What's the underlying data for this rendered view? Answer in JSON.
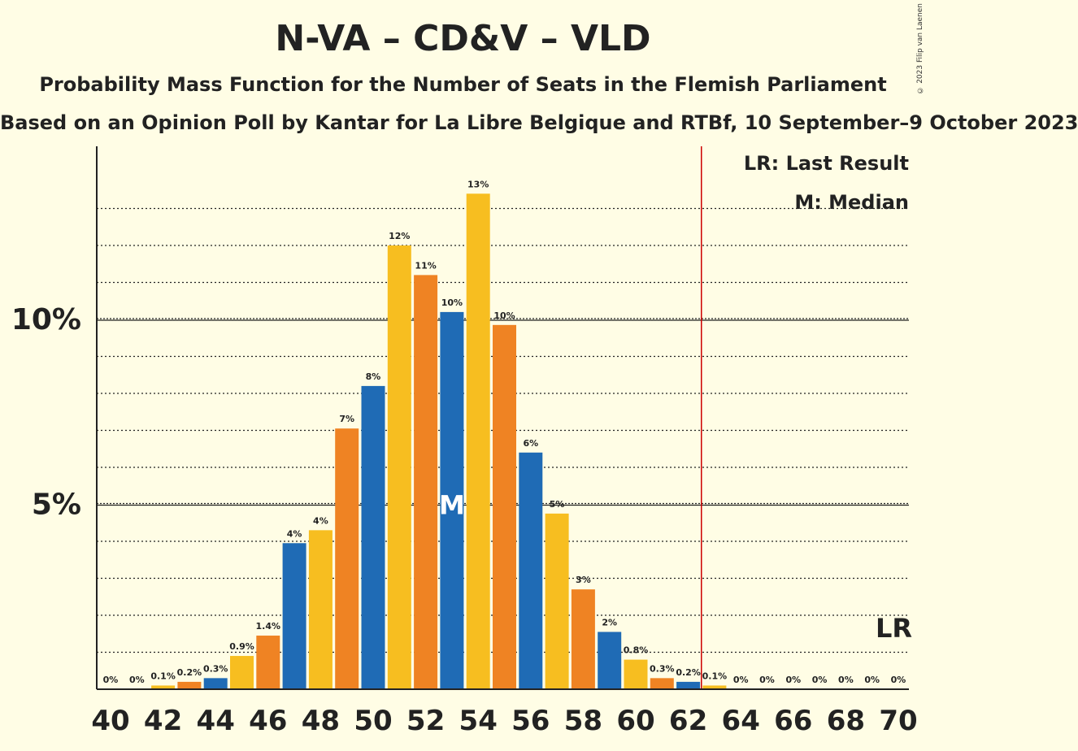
{
  "title": "N-VA – CD&V – VLD",
  "subtitle": "Probability Mass Function for the Number of Seats in the Flemish Parliament",
  "sub_subtitle": "Based on an Opinion Poll by Kantar for La Libre Belgique and RTBf, 10 September–9 October 2023",
  "copyright": "© 2023 Filip van Laenen",
  "legend": {
    "lr": "LR: Last Result",
    "median": "M: Median"
  },
  "markers": {
    "lr_label": "LR",
    "median_label": "M"
  },
  "colors": {
    "blue": "#1F6BB5",
    "yellow": "#F7BE20",
    "orange": "#EF8323",
    "lr_line": "#CC0000"
  },
  "chart_data": {
    "type": "bar",
    "xlabel": "",
    "ylabel": "",
    "ylim": [
      0,
      14.6
    ],
    "y_ticks": [
      {
        "value": 5,
        "label": "5%"
      },
      {
        "value": 10,
        "label": "10%"
      }
    ],
    "x_ticks": [
      "40",
      "42",
      "44",
      "46",
      "48",
      "50",
      "52",
      "54",
      "56",
      "58",
      "60",
      "62",
      "64",
      "66",
      "68",
      "70"
    ],
    "last_result": 63,
    "median": 53,
    "bars": [
      {
        "x": 40,
        "value": 0,
        "label": "0%",
        "color": "blue"
      },
      {
        "x": 41,
        "value": 0,
        "label": "0%",
        "color": "yellow"
      },
      {
        "x": 42,
        "value": 0.1,
        "label": "0.1%",
        "color": "yellow"
      },
      {
        "x": 43,
        "value": 0.2,
        "label": "0.2%",
        "color": "orange"
      },
      {
        "x": 44,
        "value": 0.3,
        "label": "0.3%",
        "color": "blue"
      },
      {
        "x": 45,
        "value": 0.9,
        "label": "0.9%",
        "color": "yellow"
      },
      {
        "x": 46,
        "value": 1.45,
        "label": "1.4%",
        "color": "orange"
      },
      {
        "x": 47,
        "value": 3.95,
        "label": "4%",
        "color": "blue"
      },
      {
        "x": 48,
        "value": 4.3,
        "label": "4%",
        "color": "yellow"
      },
      {
        "x": 49,
        "value": 7.05,
        "label": "7%",
        "color": "orange"
      },
      {
        "x": 50,
        "value": 8.2,
        "label": "8%",
        "color": "blue"
      },
      {
        "x": 51,
        "value": 12.0,
        "label": "12%",
        "color": "yellow"
      },
      {
        "x": 52,
        "value": 11.2,
        "label": "11%",
        "color": "orange"
      },
      {
        "x": 53,
        "value": 10.2,
        "label": "10%",
        "color": "blue"
      },
      {
        "x": 54,
        "value": 13.4,
        "label": "13%",
        "color": "yellow"
      },
      {
        "x": 55,
        "value": 9.85,
        "label": "10%",
        "color": "orange"
      },
      {
        "x": 56,
        "value": 6.4,
        "label": "6%",
        "color": "blue"
      },
      {
        "x": 57,
        "value": 4.75,
        "label": "5%",
        "color": "yellow"
      },
      {
        "x": 58,
        "value": 2.7,
        "label": "3%",
        "color": "orange"
      },
      {
        "x": 59,
        "value": 1.55,
        "label": "2%",
        "color": "blue"
      },
      {
        "x": 60,
        "value": 0.8,
        "label": "0.8%",
        "color": "yellow"
      },
      {
        "x": 61,
        "value": 0.3,
        "label": "0.3%",
        "color": "orange"
      },
      {
        "x": 62,
        "value": 0.2,
        "label": "0.2%",
        "color": "blue"
      },
      {
        "x": 63,
        "value": 0.1,
        "label": "0.1%",
        "color": "yellow"
      },
      {
        "x": 64,
        "value": 0,
        "label": "0%",
        "color": "orange"
      },
      {
        "x": 65,
        "value": 0,
        "label": "0%",
        "color": "blue"
      },
      {
        "x": 66,
        "value": 0,
        "label": "0%",
        "color": "yellow"
      },
      {
        "x": 67,
        "value": 0,
        "label": "0%",
        "color": "orange"
      },
      {
        "x": 68,
        "value": 0,
        "label": "0%",
        "color": "blue"
      },
      {
        "x": 69,
        "value": 0,
        "label": "0%",
        "color": "yellow"
      },
      {
        "x": 70,
        "value": 0,
        "label": "0%",
        "color": "orange"
      }
    ]
  }
}
